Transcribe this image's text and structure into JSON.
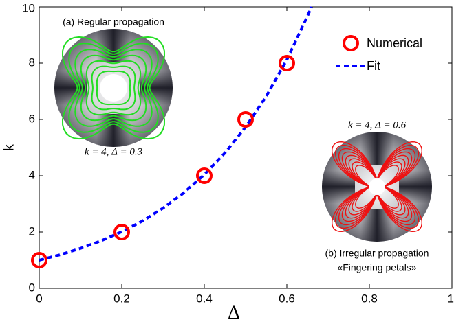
{
  "chart_data": {
    "type": "scatter_fit",
    "x_label": "Δ",
    "y_label": "k",
    "xlim": [
      0,
      1
    ],
    "ylim": [
      0,
      10
    ],
    "xticks": [
      0,
      0.2,
      0.4,
      0.6,
      0.8,
      1
    ],
    "yticks": [
      0,
      2,
      4,
      6,
      8,
      10
    ],
    "legend": "upper right",
    "series": [
      {
        "name": "Numerical",
        "color": "#ff0000",
        "x": [
          0,
          0.2,
          0.4,
          0.5,
          0.6
        ],
        "values": [
          1,
          2,
          4,
          6,
          8
        ]
      },
      {
        "name": "Fit",
        "color": "#0000ff",
        "x": [
          0,
          0.05,
          0.1,
          0.15,
          0.2,
          0.25,
          0.3,
          0.35,
          0.4,
          0.45,
          0.5,
          0.55,
          0.6,
          0.65,
          0.66
        ],
        "values": [
          1,
          1.19,
          1.42,
          1.69,
          2.01,
          2.39,
          2.85,
          3.39,
          4.04,
          4.81,
          5.73,
          6.82,
          8.12,
          9.67,
          10
        ]
      }
    ],
    "annotations": [
      "(a) Regular propagation",
      "k = 4, Δ = 0.3",
      "k = 4, Δ = 0.6",
      "(b) Irregular propagation",
      "«Fingering petals»"
    ]
  }
}
